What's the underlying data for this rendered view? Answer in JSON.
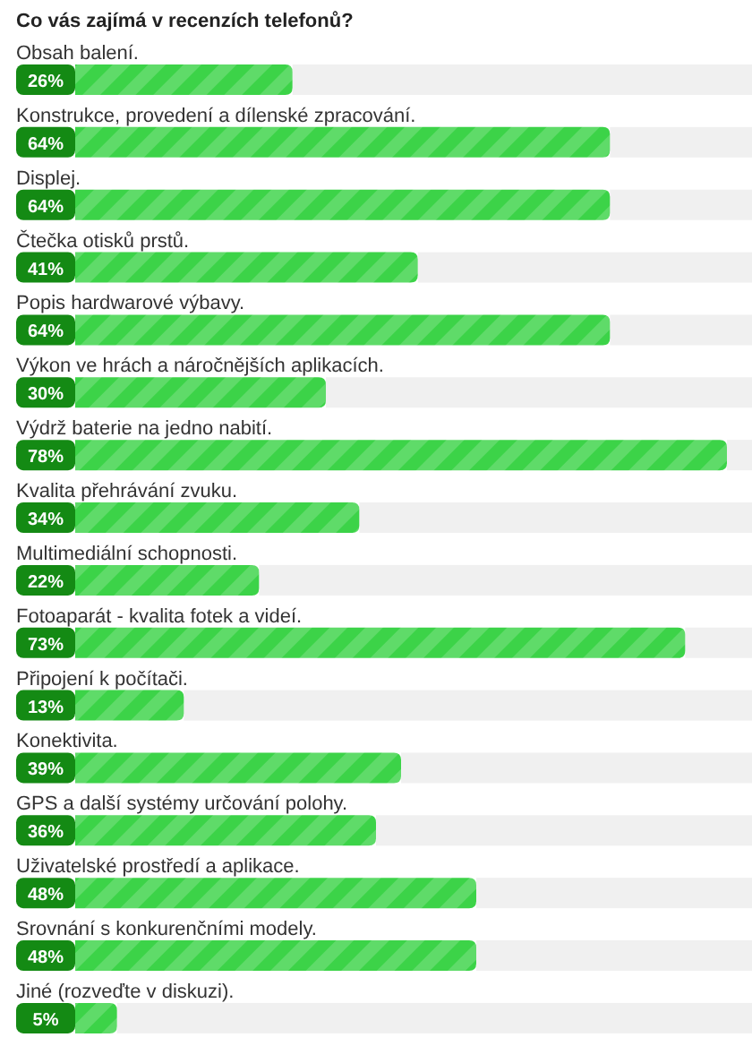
{
  "chart_data": {
    "type": "bar",
    "orientation": "horizontal",
    "title": "Co vás zajímá v recenzích telefonů?",
    "categories": [
      "Obsah balení.",
      "Konstrukce, provedení a dílenské zpracování.",
      "Displej.",
      "Čtečka otisků prstů.",
      "Popis hardwarové výbavy.",
      "Výkon ve hrách a náročnějších aplikacích.",
      "Výdrž baterie na jedno nabití.",
      "Kvalita přehrávání zvuku.",
      "Multimediální schopnosti.",
      "Fotoaparát - kvalita fotek a videí.",
      "Připojení k počítači.",
      "Konektivita.",
      "GPS a další systémy určování polohy.",
      "Uživatelské prostředí a aplikace.",
      "Srovnání s konkurenčními modely.",
      "Jiné (rozveďte v diskuzi)."
    ],
    "values": [
      26,
      64,
      64,
      41,
      64,
      30,
      78,
      34,
      22,
      73,
      13,
      39,
      36,
      48,
      48,
      5
    ],
    "value_labels": [
      "26%",
      "64%",
      "64%",
      "41%",
      "64%",
      "30%",
      "78%",
      "34%",
      "22%",
      "73%",
      "13%",
      "39%",
      "36%",
      "48%",
      "48%",
      "5%"
    ],
    "color": "#3cd348"
  }
}
